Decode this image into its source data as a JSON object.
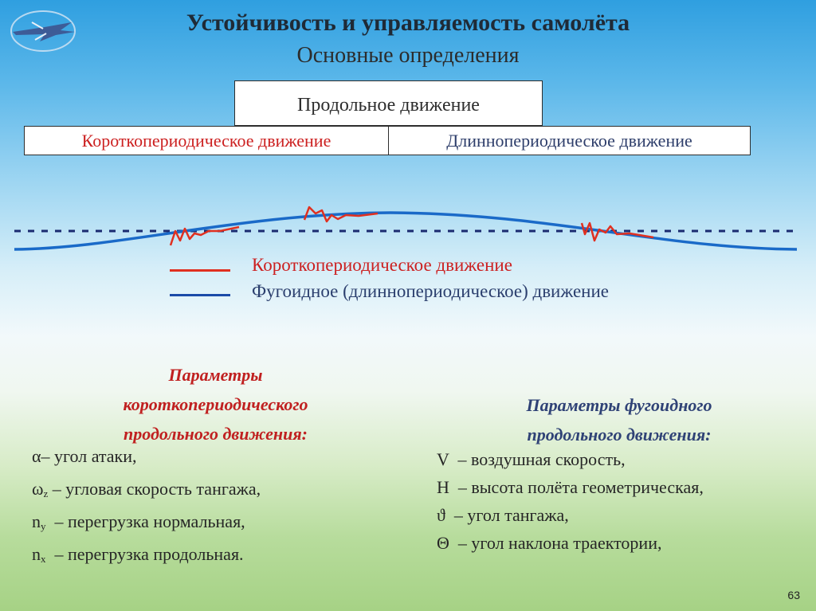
{
  "title": "Устойчивость и управляемость  самолёта",
  "subtitle": "Основные определения",
  "diagram": {
    "top_box": "Продольное движение",
    "left_box": "Короткопериодическое движение",
    "right_box": "Длиннопериодическое движение"
  },
  "legend": {
    "short_period": "Короткопериодическое движение",
    "phugoid": "Фугоидное (длиннопериодическое) движение"
  },
  "left_params": {
    "heading": [
      "Параметры",
      "короткопериодического",
      "продольного движения:"
    ],
    "items": [
      {
        "symbol": "α",
        "sub": "",
        "text": "– угол атаки,"
      },
      {
        "symbol": "ω",
        "sub": "z",
        "text": " – угловая скорость тангажа,"
      },
      {
        "symbol": "n",
        "sub": "y",
        "text": "  – перегрузка нормальная,"
      },
      {
        "symbol": "n",
        "sub": "x",
        "text": "  – перегрузка продольная."
      }
    ]
  },
  "right_params": {
    "heading": [
      "Параметры фугоидного",
      "продольного движения:"
    ],
    "items": [
      {
        "symbol": "V",
        "sub": "",
        "text": "  – воздушная скорость,"
      },
      {
        "symbol": "H",
        "sub": "",
        "text": "  – высота полёта геометрическая,"
      },
      {
        "symbol": "ϑ",
        "sub": "",
        "text": "  – угол тангажа,"
      },
      {
        "symbol": "Θ",
        "sub": "",
        "text": "  – угол наклона траектории,"
      }
    ]
  },
  "page_number": "63",
  "colors": {
    "short_period": "#e03020",
    "phugoid": "#1a6ac8",
    "reference_line": "#1a2a70"
  }
}
